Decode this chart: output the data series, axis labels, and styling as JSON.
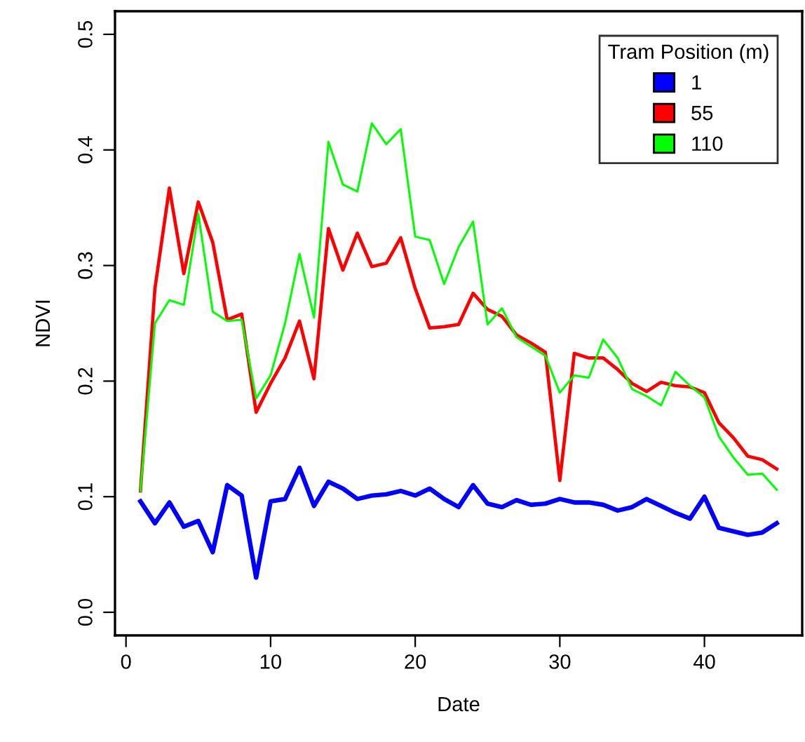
{
  "chart_data": {
    "type": "line",
    "xlabel": "Date",
    "ylabel": "NDVI",
    "legend_title": "Tram Position (m)",
    "legend": "top right",
    "grid": false,
    "marker": "none",
    "line_style": "solid",
    "x": [
      1,
      2,
      3,
      4,
      5,
      6,
      7,
      8,
      9,
      10,
      11,
      12,
      13,
      14,
      15,
      16,
      17,
      18,
      19,
      20,
      21,
      22,
      23,
      24,
      25,
      26,
      27,
      28,
      29,
      30,
      31,
      32,
      33,
      34,
      35,
      36,
      37,
      38,
      39,
      40,
      41,
      42,
      43,
      44,
      45
    ],
    "xlim": [
      -0.76,
      46.76
    ],
    "ylim": [
      -0.02,
      0.52
    ],
    "xticks": [
      0,
      10,
      20,
      30,
      40
    ],
    "yticks": [
      {
        "value": 0,
        "label": "0.0"
      },
      0.1,
      0.2,
      0.3,
      0.4,
      0.5
    ],
    "series": [
      {
        "name": "1",
        "color": "#0000ff",
        "values": [
          0.096,
          0.077,
          0.095,
          0.074,
          0.079,
          0.052,
          0.11,
          0.101,
          0.03,
          0.096,
          0.098,
          0.125,
          0.092,
          0.113,
          0.107,
          0.098,
          0.101,
          0.102,
          0.105,
          0.101,
          0.107,
          0.098,
          0.091,
          0.11,
          0.094,
          0.091,
          0.097,
          0.093,
          0.094,
          0.098,
          0.095,
          0.095,
          0.093,
          0.088,
          0.091,
          0.098,
          0.092,
          0.086,
          0.081,
          0.1,
          0.073,
          0.07,
          0.067,
          0.069,
          0.077
        ]
      },
      {
        "name": "55",
        "color": "#ff0000",
        "values": [
          0.105,
          0.28,
          0.367,
          0.293,
          0.355,
          0.32,
          0.253,
          0.258,
          0.173,
          0.198,
          0.22,
          0.252,
          0.202,
          0.332,
          0.296,
          0.328,
          0.299,
          0.302,
          0.324,
          0.28,
          0.246,
          0.247,
          0.249,
          0.276,
          0.262,
          0.256,
          0.24,
          0.233,
          0.225,
          0.114,
          0.224,
          0.22,
          0.22,
          0.21,
          0.198,
          0.191,
          0.199,
          0.196,
          0.195,
          0.19,
          0.164,
          0.151,
          0.135,
          0.132,
          0.124
        ]
      },
      {
        "name": "110",
        "color": "#00ff00",
        "values": [
          0.105,
          0.25,
          0.27,
          0.266,
          0.345,
          0.26,
          0.252,
          0.253,
          0.185,
          0.205,
          0.25,
          0.31,
          0.255,
          0.407,
          0.37,
          0.364,
          0.423,
          0.405,
          0.418,
          0.325,
          0.322,
          0.284,
          0.316,
          0.338,
          0.249,
          0.263,
          0.238,
          0.23,
          0.222,
          0.19,
          0.205,
          0.203,
          0.236,
          0.22,
          0.193,
          0.187,
          0.179,
          0.208,
          0.196,
          0.186,
          0.152,
          0.134,
          0.119,
          0.12,
          0.106
        ]
      }
    ]
  }
}
